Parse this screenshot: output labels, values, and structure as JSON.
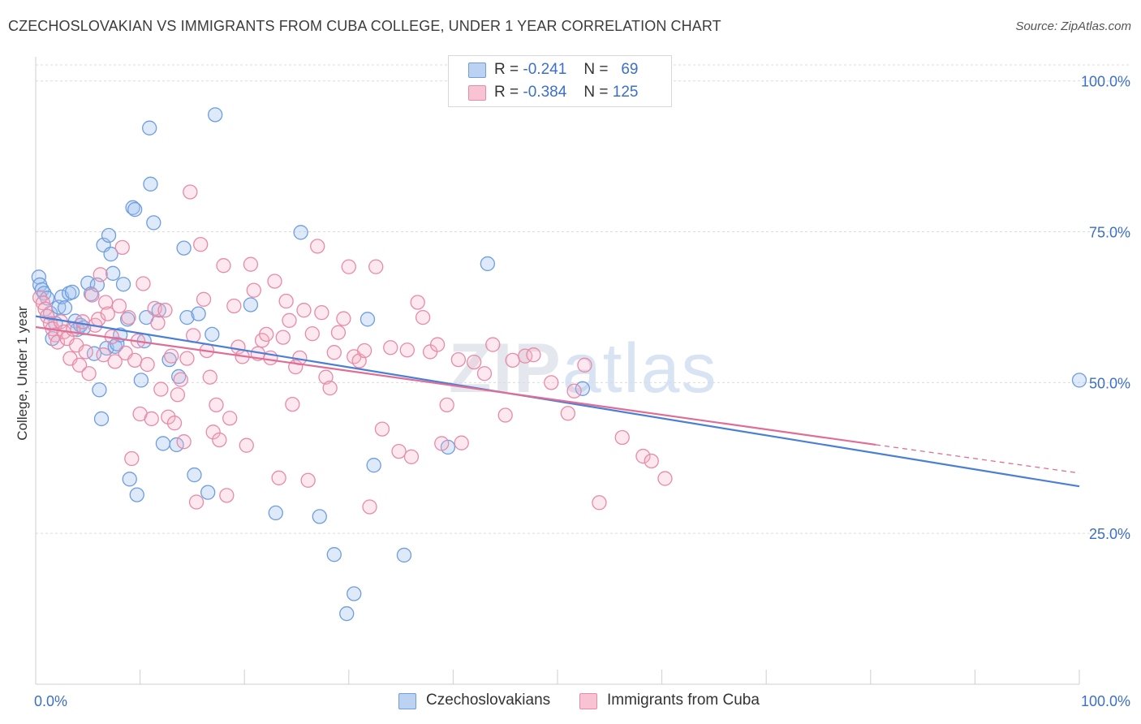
{
  "title": "CZECHOSLOVAKIAN VS IMMIGRANTS FROM CUBA COLLEGE, UNDER 1 YEAR CORRELATION CHART",
  "source": "Source: ZipAtlas.com",
  "watermark": {
    "zip": "ZIP",
    "atlas": "atlas"
  },
  "legend": {
    "rows": [
      {
        "r_label": "R =",
        "r_value": "-0.241",
        "n_label": "N =",
        "n_value": "69",
        "color": "#6e9de0",
        "fill": "#bcd2f2"
      },
      {
        "r_label": "R =",
        "r_value": "-0.384",
        "n_label": "N =",
        "n_value": "125",
        "color": "#e88aa8",
        "fill": "#f8c4d4"
      }
    ]
  },
  "bottom_legend": [
    {
      "label": "Czechoslovakians",
      "color": "#6e9de0",
      "fill": "#bcd2f2"
    },
    {
      "label": "Immigrants from Cuba",
      "color": "#e88aa8",
      "fill": "#f8c4d4"
    }
  ],
  "chart_data": {
    "type": "scatter",
    "title": "CZECHOSLOVAKIAN VS IMMIGRANTS FROM CUBA COLLEGE, UNDER 1 YEAR CORRELATION CHART",
    "xlabel": "",
    "ylabel": "College, Under 1 year",
    "xlim": [
      0,
      100
    ],
    "ylim": [
      0,
      104
    ],
    "x_tick_labels": [
      "0.0%",
      "100.0%"
    ],
    "y_ticks": [
      25,
      50,
      75,
      100
    ],
    "y_tick_labels": [
      "25.0%",
      "50.0%",
      "75.0%",
      "100.0%"
    ],
    "grid": true,
    "legend_position": "top-center",
    "series": [
      {
        "name": "Czechoslovakians",
        "color": "#4a7fd6",
        "trend": {
          "x0": 0,
          "y0": 61.0,
          "x1": 100,
          "y1": 32.8
        },
        "points": [
          [
            0.3,
            67.5
          ],
          [
            0.4,
            66.2
          ],
          [
            0.6,
            65.4
          ],
          [
            0.8,
            64.8
          ],
          [
            1.1,
            64.0
          ],
          [
            1.4,
            61.5
          ],
          [
            1.6,
            57.3
          ],
          [
            1.9,
            59.8
          ],
          [
            2.2,
            62.5
          ],
          [
            2.5,
            64.2
          ],
          [
            2.8,
            62.4
          ],
          [
            3.2,
            64.8
          ],
          [
            3.5,
            65.0
          ],
          [
            3.8,
            60.2
          ],
          [
            4.0,
            58.8
          ],
          [
            4.3,
            59.5
          ],
          [
            4.6,
            59.1
          ],
          [
            5.0,
            66.5
          ],
          [
            5.3,
            64.7
          ],
          [
            5.6,
            54.8
          ],
          [
            5.9,
            66.2
          ],
          [
            6.1,
            48.8
          ],
          [
            6.3,
            44.0
          ],
          [
            6.5,
            72.8
          ],
          [
            6.8,
            55.7
          ],
          [
            7.0,
            74.4
          ],
          [
            7.2,
            71.3
          ],
          [
            7.4,
            68.1
          ],
          [
            7.6,
            56.0
          ],
          [
            7.8,
            56.4
          ],
          [
            8.1,
            57.9
          ],
          [
            8.4,
            66.3
          ],
          [
            8.8,
            60.5
          ],
          [
            9.0,
            34.0
          ],
          [
            9.3,
            79.0
          ],
          [
            9.5,
            78.7
          ],
          [
            9.7,
            31.4
          ],
          [
            10.1,
            50.4
          ],
          [
            10.4,
            56.9
          ],
          [
            10.6,
            60.8
          ],
          [
            10.9,
            92.2
          ],
          [
            11.0,
            82.9
          ],
          [
            11.3,
            76.5
          ],
          [
            11.8,
            62.0
          ],
          [
            12.2,
            39.9
          ],
          [
            12.8,
            53.8
          ],
          [
            13.5,
            39.7
          ],
          [
            13.7,
            51.0
          ],
          [
            14.2,
            72.3
          ],
          [
            14.5,
            60.8
          ],
          [
            15.2,
            34.7
          ],
          [
            15.6,
            61.4
          ],
          [
            16.5,
            31.8
          ],
          [
            16.9,
            58.0
          ],
          [
            17.2,
            94.4
          ],
          [
            20.6,
            62.9
          ],
          [
            23.0,
            28.4
          ],
          [
            25.4,
            74.9
          ],
          [
            27.2,
            27.8
          ],
          [
            28.6,
            21.5
          ],
          [
            29.8,
            11.7
          ],
          [
            30.5,
            15.0
          ],
          [
            31.8,
            60.5
          ],
          [
            32.4,
            36.3
          ],
          [
            35.3,
            21.4
          ],
          [
            39.5,
            39.3
          ],
          [
            43.3,
            69.7
          ],
          [
            52.4,
            49.0
          ],
          [
            100.0,
            50.4
          ]
        ]
      },
      {
        "name": "Immigrants from Cuba",
        "color": "#e06d95",
        "trend": {
          "x0": 0,
          "y0": 59.2,
          "x1": 80.5,
          "y1": 39.7
        },
        "trend_dashed": {
          "x0": 80.5,
          "y0": 39.7,
          "x1": 100,
          "y1": 35.0
        },
        "points": [
          [
            0.4,
            64.1
          ],
          [
            0.7,
            63.2
          ],
          [
            0.9,
            62.2
          ],
          [
            1.1,
            61.0
          ],
          [
            1.4,
            59.8
          ],
          [
            1.6,
            58.9
          ],
          [
            1.9,
            57.9
          ],
          [
            2.1,
            56.7
          ],
          [
            2.4,
            60.1
          ],
          [
            2.7,
            58.4
          ],
          [
            3.0,
            57.3
          ],
          [
            3.3,
            54.0
          ],
          [
            3.6,
            58.8
          ],
          [
            3.9,
            56.2
          ],
          [
            4.2,
            52.9
          ],
          [
            4.5,
            60.1
          ],
          [
            4.8,
            55.1
          ],
          [
            5.1,
            51.5
          ],
          [
            5.4,
            64.5
          ],
          [
            5.7,
            59.5
          ],
          [
            6.0,
            60.5
          ],
          [
            6.2,
            67.9
          ],
          [
            6.5,
            54.6
          ],
          [
            6.7,
            63.3
          ],
          [
            6.9,
            61.4
          ],
          [
            7.3,
            57.6
          ],
          [
            7.6,
            53.5
          ],
          [
            8.0,
            62.7
          ],
          [
            8.3,
            72.4
          ],
          [
            8.6,
            54.9
          ],
          [
            8.9,
            60.8
          ],
          [
            9.2,
            37.4
          ],
          [
            9.5,
            53.7
          ],
          [
            9.8,
            56.9
          ],
          [
            10.0,
            44.8
          ],
          [
            10.3,
            66.4
          ],
          [
            10.7,
            53.0
          ],
          [
            11.1,
            44.0
          ],
          [
            11.4,
            62.3
          ],
          [
            11.7,
            59.9
          ],
          [
            12.0,
            48.9
          ],
          [
            12.4,
            62.0
          ],
          [
            12.7,
            44.3
          ],
          [
            13.0,
            54.4
          ],
          [
            13.3,
            43.3
          ],
          [
            13.6,
            48.0
          ],
          [
            13.9,
            50.5
          ],
          [
            14.2,
            40.2
          ],
          [
            14.5,
            54.0
          ],
          [
            14.8,
            81.6
          ],
          [
            15.1,
            57.8
          ],
          [
            15.4,
            30.2
          ],
          [
            15.8,
            72.9
          ],
          [
            16.1,
            63.8
          ],
          [
            16.4,
            55.3
          ],
          [
            16.7,
            50.9
          ],
          [
            17.0,
            41.8
          ],
          [
            17.3,
            46.3
          ],
          [
            17.6,
            40.5
          ],
          [
            18.0,
            69.4
          ],
          [
            18.3,
            31.3
          ],
          [
            18.6,
            44.1
          ],
          [
            19.0,
            62.7
          ],
          [
            19.4,
            55.9
          ],
          [
            19.8,
            54.3
          ],
          [
            20.2,
            39.6
          ],
          [
            20.6,
            69.6
          ],
          [
            20.9,
            65.3
          ],
          [
            21.3,
            54.8
          ],
          [
            21.7,
            57.0
          ],
          [
            22.1,
            58.0
          ],
          [
            22.5,
            54.1
          ],
          [
            22.9,
            66.8
          ],
          [
            23.3,
            34.2
          ],
          [
            23.7,
            57.5
          ],
          [
            24.0,
            63.5
          ],
          [
            24.3,
            60.3
          ],
          [
            24.6,
            46.4
          ],
          [
            24.9,
            52.6
          ],
          [
            25.3,
            54.1
          ],
          [
            25.7,
            62.0
          ],
          [
            26.1,
            33.8
          ],
          [
            26.5,
            58.1
          ],
          [
            27.0,
            72.6
          ],
          [
            27.4,
            61.6
          ],
          [
            27.8,
            50.9
          ],
          [
            28.2,
            49.1
          ],
          [
            28.6,
            55.0
          ],
          [
            29.0,
            58.3
          ],
          [
            29.5,
            60.6
          ],
          [
            30.0,
            69.2
          ],
          [
            30.5,
            54.3
          ],
          [
            31.0,
            53.6
          ],
          [
            31.5,
            55.3
          ],
          [
            32.0,
            29.4
          ],
          [
            32.6,
            69.2
          ],
          [
            33.2,
            42.3
          ],
          [
            34.0,
            55.8
          ],
          [
            34.8,
            38.6
          ],
          [
            35.6,
            55.4
          ],
          [
            36.0,
            37.7
          ],
          [
            36.6,
            63.3
          ],
          [
            37.1,
            60.8
          ],
          [
            37.8,
            55.1
          ],
          [
            38.5,
            56.3
          ],
          [
            38.9,
            39.9
          ],
          [
            39.4,
            46.3
          ],
          [
            40.5,
            53.8
          ],
          [
            40.8,
            40.0
          ],
          [
            42.0,
            53.4
          ],
          [
            43.0,
            51.5
          ],
          [
            43.8,
            56.3
          ],
          [
            45.0,
            44.6
          ],
          [
            45.7,
            53.7
          ],
          [
            46.9,
            54.4
          ],
          [
            47.7,
            54.6
          ],
          [
            49.4,
            50.0
          ],
          [
            51.0,
            44.9
          ],
          [
            51.6,
            48.6
          ],
          [
            52.6,
            52.9
          ],
          [
            54.0,
            30.1
          ],
          [
            56.2,
            40.9
          ],
          [
            58.2,
            37.8
          ],
          [
            59.0,
            37.0
          ],
          [
            60.3,
            34.1
          ]
        ]
      }
    ]
  }
}
